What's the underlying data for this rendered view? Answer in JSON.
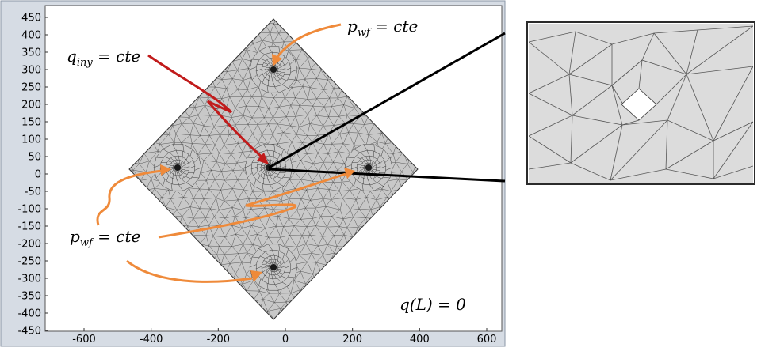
{
  "plot": {
    "x_ticks": [
      "-600",
      "-400",
      "-200",
      "0",
      "200",
      "400",
      "600"
    ],
    "y_ticks": [
      "450",
      "400",
      "350",
      "300",
      "250",
      "200",
      "150",
      "100",
      "50",
      "0",
      "-50",
      "-100",
      "-150",
      "-200",
      "-250",
      "-300",
      "-350",
      "-400",
      "-450"
    ],
    "colors": {
      "mesh_fill": "#c8c8c8",
      "mesh_line": "#4a4a4a",
      "orange_arrow": "#ef8a3a",
      "red_arrow": "#c11b1b",
      "axes_bg": "#ffffff",
      "frame_bg": "#d6dce4"
    }
  },
  "labels": {
    "q_iny": {
      "main": "q",
      "sub": "iny",
      "rest": " = cte"
    },
    "p_wf_top": {
      "main": "p",
      "sub": "wf",
      "rest": " = cte"
    },
    "p_wf_left": {
      "main": "p",
      "sub": "wf",
      "rest": " = cte"
    },
    "q_L": "q(L) = 0"
  },
  "inset": {
    "description_icon": "zoom-inset",
    "mesh_fill": "#dcdcdc"
  }
}
